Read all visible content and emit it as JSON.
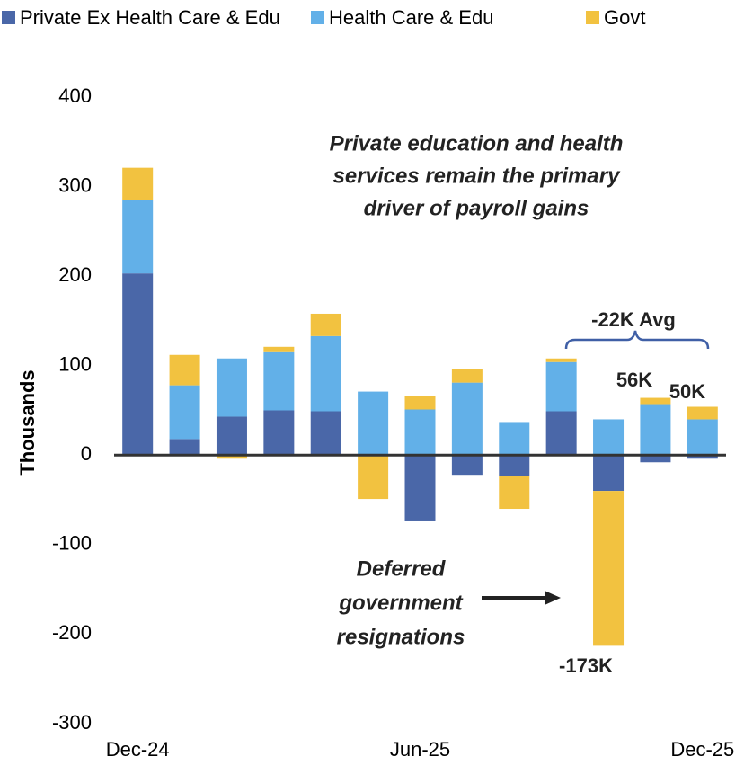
{
  "chart_data": {
    "type": "bar",
    "stacked": true,
    "y_label": "Thousands",
    "categories": [
      "Dec-24",
      null,
      null,
      null,
      null,
      null,
      "Jun-25",
      null,
      null,
      null,
      null,
      null,
      "Dec-25"
    ],
    "series": [
      {
        "name": "Private Ex Health Care & Edu",
        "color": "#4a67a8",
        "values": [
          203,
          18,
          43,
          50,
          49,
          0,
          -74,
          -22,
          -23,
          49,
          -40,
          -8,
          -4
        ]
      },
      {
        "name": "Health Care & Edu",
        "color": "#62b0e8",
        "values": [
          82,
          60,
          65,
          65,
          84,
          71,
          51,
          81,
          37,
          55,
          40,
          57,
          40
        ]
      },
      {
        "name": "Govt",
        "color": "#f2c240",
        "values": [
          36,
          34,
          -4,
          6,
          25,
          -49,
          15,
          15,
          -37,
          4,
          -173,
          7,
          14
        ]
      }
    ],
    "ylim": [
      -300,
      400
    ],
    "yticks": [
      -300,
      -200,
      -100,
      0,
      100,
      200,
      300,
      400
    ],
    "grid": false,
    "legend": "top",
    "annotations": {
      "headline": [
        "Private education and health",
        "services remain the primary",
        "driver of payroll gains"
      ],
      "deferred": [
        "Deferred",
        "government",
        "resignations"
      ],
      "average": "-22K Avg",
      "total_nov": "56K",
      "total_dec": "50K",
      "total_oct": "-173K"
    }
  }
}
